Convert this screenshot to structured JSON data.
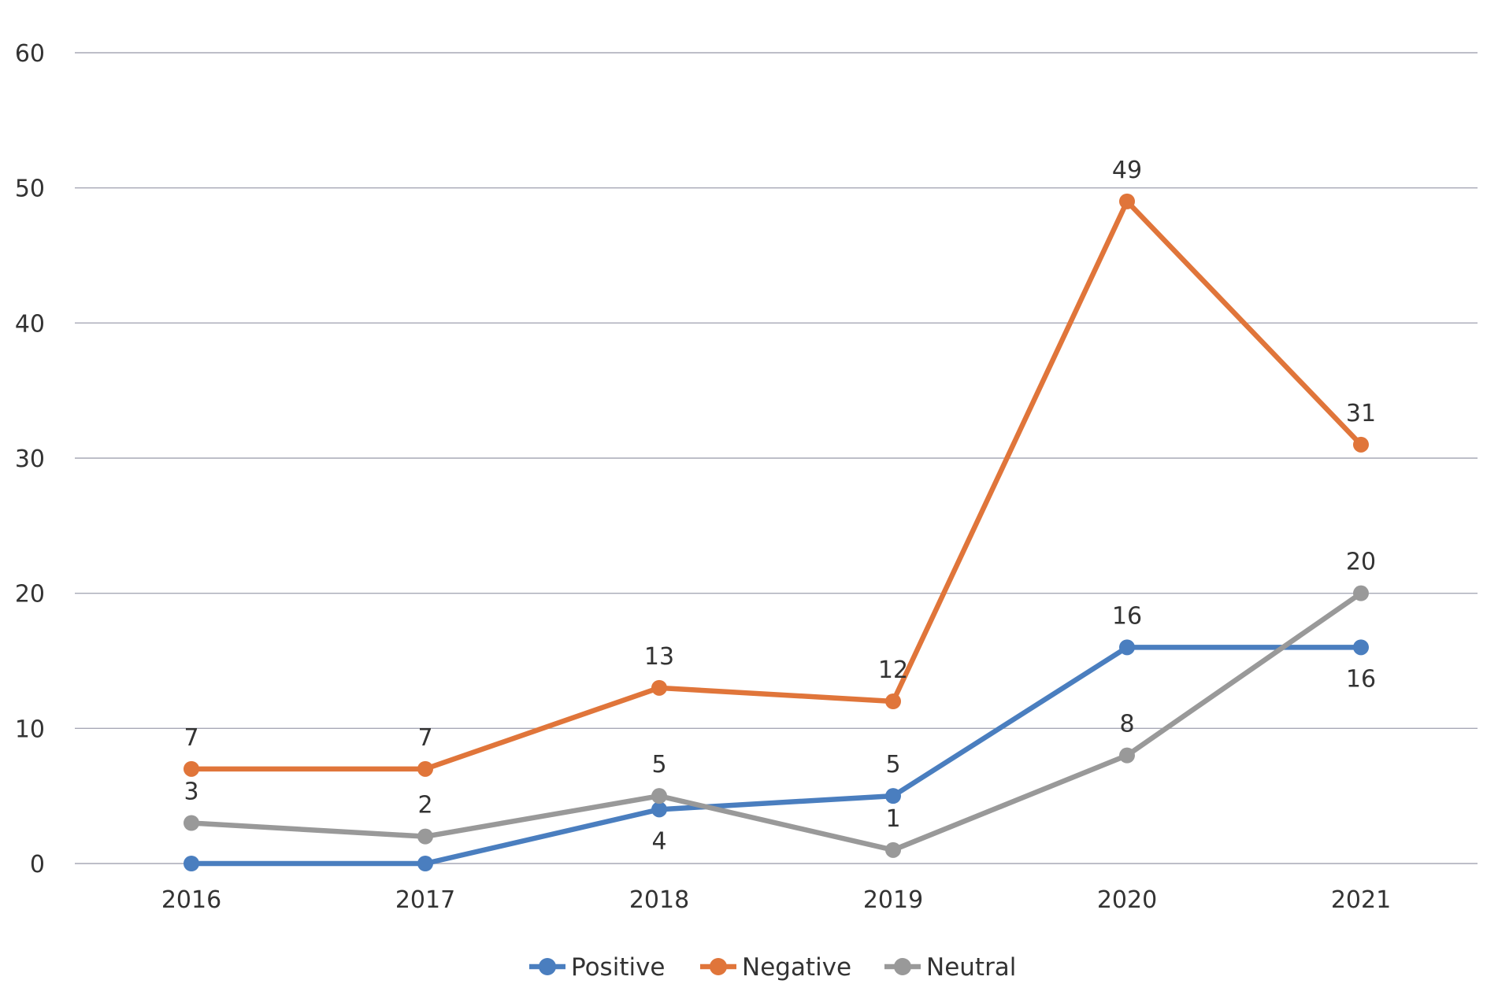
{
  "chart_data": {
    "type": "line",
    "categories": [
      "2016",
      "2017",
      "2018",
      "2019",
      "2020",
      "2021"
    ],
    "series": [
      {
        "name": "Positive",
        "values": [
          0,
          0,
          4,
          5,
          16,
          16
        ],
        "color": "#4a7ebf"
      },
      {
        "name": "Negative",
        "values": [
          7,
          7,
          13,
          12,
          49,
          31
        ],
        "color": "#e0753a"
      },
      {
        "name": "Neutral",
        "values": [
          3,
          2,
          5,
          1,
          8,
          20
        ],
        "color": "#999999"
      }
    ],
    "ylim": [
      0,
      60
    ],
    "yticks": [
      "0",
      "10",
      "20",
      "30",
      "40",
      "50",
      "60"
    ],
    "grid": true,
    "legend": "bottom",
    "title": "",
    "xlabel": "",
    "ylabel": ""
  }
}
